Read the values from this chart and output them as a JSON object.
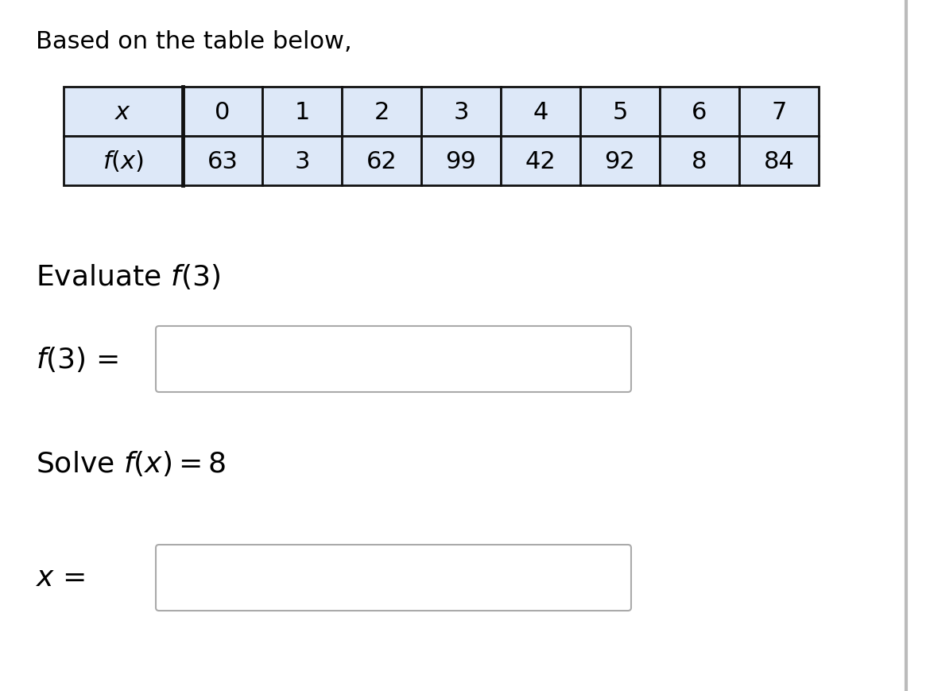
{
  "title": "Based on the table below,",
  "x_header": "$x$",
  "fx_header": "$f(x)$",
  "x_values": [
    "0",
    "1",
    "2",
    "3",
    "4",
    "5",
    "6",
    "7"
  ],
  "fx_values": [
    "63",
    "3",
    "62",
    "99",
    "42",
    "92",
    "8",
    "84"
  ],
  "cell_bg": "#dde8f8",
  "border_color": "#111111",
  "evaluate_text": "Evaluate $f(3)$",
  "f3_label": "$f(3)$ =",
  "solve_text": "Solve $f(x) = 8$",
  "x_label": "$x$ =",
  "background_color": "#ffffff",
  "text_color": "#000000",
  "title_fontsize": 22,
  "body_fontsize": 24,
  "table_fontsize": 22
}
